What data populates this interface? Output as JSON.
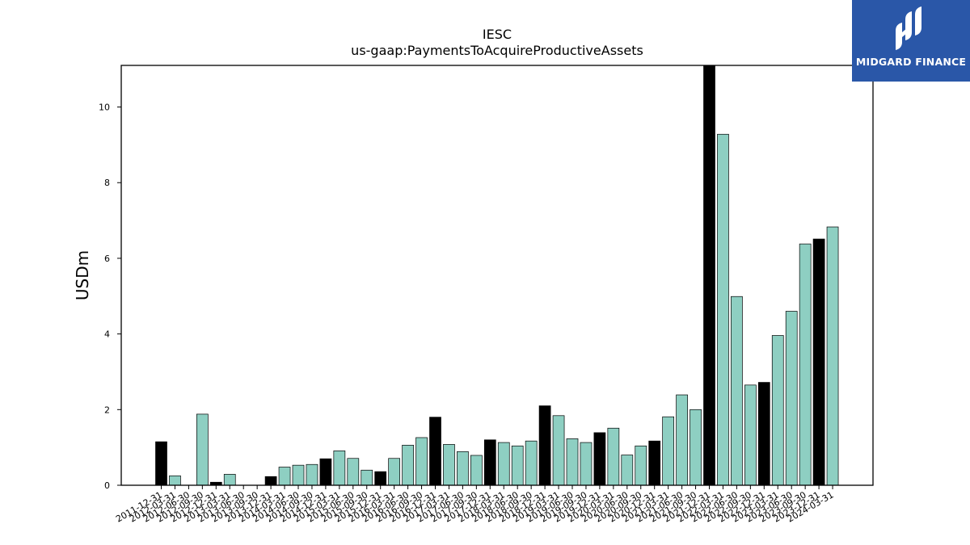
{
  "chart_data": {
    "type": "bar",
    "title": "IESC",
    "subtitle": "us-gaap:PaymentsToAcquireProductiveAssets",
    "xlabel": "",
    "ylabel": "USDm",
    "ylim": [
      0,
      11.1
    ],
    "yticks": [
      0,
      2,
      4,
      6,
      8,
      10
    ],
    "grid": false,
    "categories": [
      "2011-12-31",
      "2012-03-31",
      "2012-06-30",
      "2012-09-30",
      "2012-12-31",
      "2013-03-31",
      "2013-06-30",
      "2013-09-30",
      "2013-12-31",
      "2014-03-31",
      "2014-06-30",
      "2014-09-30",
      "2014-12-31",
      "2015-03-31",
      "2015-06-30",
      "2015-09-30",
      "2015-12-31",
      "2016-03-31",
      "2016-06-30",
      "2016-09-30",
      "2016-12-31",
      "2017-03-31",
      "2017-06-30",
      "2017-09-30",
      "2017-12-31",
      "2018-03-31",
      "2018-06-30",
      "2018-09-30",
      "2018-12-31",
      "2019-03-31",
      "2019-06-30",
      "2019-09-30",
      "2019-12-31",
      "2020-03-31",
      "2020-06-30",
      "2020-09-30",
      "2020-12-31",
      "2021-03-31",
      "2021-06-30",
      "2021-09-30",
      "2021-12-31",
      "2022-03-31",
      "2022-06-30",
      "2022-09-30",
      "2022-12-31",
      "2023-03-31",
      "2023-06-30",
      "2023-09-30",
      "2023-12-31",
      "2024-03-31"
    ],
    "values": [
      1.15,
      0.25,
      0.0,
      1.88,
      0.08,
      0.29,
      0.0,
      0.0,
      0.23,
      0.48,
      0.53,
      0.55,
      0.7,
      0.91,
      0.71,
      0.4,
      0.36,
      0.71,
      1.06,
      1.26,
      1.8,
      1.08,
      0.89,
      0.79,
      1.2,
      1.13,
      1.04,
      1.17,
      2.1,
      1.84,
      1.23,
      1.13,
      1.39,
      1.51,
      0.8,
      1.04,
      1.17,
      1.81,
      2.39,
      2.0,
      11.1,
      9.28,
      4.99,
      2.65,
      2.72,
      3.96,
      4.6,
      6.38,
      6.51,
      6.83
    ],
    "highlight_quarter": "12-31",
    "colors": {
      "highlight": "#000000",
      "normal": "#8ecfc2",
      "edge": "#000000"
    }
  },
  "logo": {
    "text": "MIDGARD FINANCE",
    "background": "#2a57a8",
    "color": "#ffffff"
  }
}
